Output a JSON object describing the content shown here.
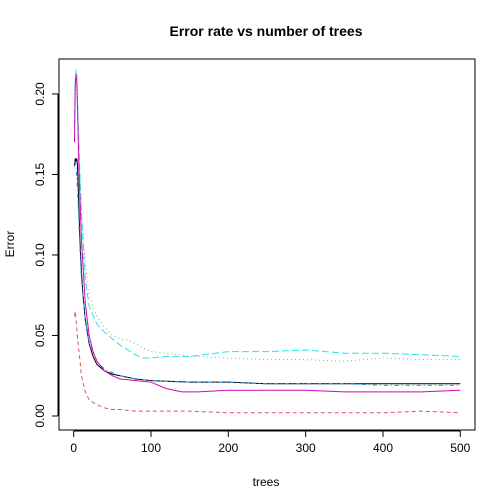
{
  "chart_data": {
    "type": "line",
    "title": "Error rate vs number of trees",
    "xlabel": "trees",
    "ylabel": "Error",
    "xlim": [
      -19,
      519
    ],
    "ylim": [
      -0.0087,
      0.2217
    ],
    "x_ticks": [
      0,
      100,
      200,
      300,
      400,
      500
    ],
    "y_ticks": [
      0.0,
      0.05,
      0.1,
      0.15,
      0.2
    ],
    "y_tick_labels": [
      "0.00",
      "0.05",
      "0.10",
      "0.15",
      "0.20"
    ],
    "grid": false,
    "series": [
      {
        "color": "#000000",
        "dash": "solid",
        "x": [
          1,
          2,
          3,
          4,
          5,
          6,
          8,
          10,
          12,
          15,
          20,
          25,
          30,
          40,
          50,
          60,
          80,
          100,
          150,
          200,
          250,
          300,
          350,
          400,
          450,
          500
        ],
        "y": [
          0.155,
          0.16,
          0.158,
          0.16,
          0.155,
          0.14,
          0.11,
          0.09,
          0.075,
          0.06,
          0.045,
          0.037,
          0.032,
          0.028,
          0.026,
          0.025,
          0.023,
          0.022,
          0.021,
          0.021,
          0.02,
          0.02,
          0.02,
          0.02,
          0.02,
          0.02
        ]
      },
      {
        "color": "#DF536B",
        "dash": "dashed",
        "x": [
          1,
          2,
          3,
          5,
          8,
          10,
          15,
          20,
          30,
          40,
          50,
          60,
          80,
          100,
          150,
          200,
          250,
          300,
          350,
          400,
          450,
          500
        ],
        "y": [
          0.062,
          0.065,
          0.06,
          0.048,
          0.035,
          0.025,
          0.015,
          0.01,
          0.007,
          0.005,
          0.004,
          0.004,
          0.003,
          0.003,
          0.003,
          0.002,
          0.002,
          0.002,
          0.002,
          0.002,
          0.003,
          0.002
        ]
      },
      {
        "color": "#61D04F",
        "dash": "dotted",
        "x": [
          1,
          2,
          3,
          4,
          5,
          7,
          10,
          15,
          20,
          25,
          30,
          40,
          50,
          60,
          70,
          80,
          90,
          100,
          120,
          150,
          200,
          250,
          300,
          350,
          400,
          450,
          500
        ],
        "y": [
          0.175,
          0.2,
          0.21,
          0.205,
          0.19,
          0.16,
          0.13,
          0.095,
          0.075,
          0.068,
          0.062,
          0.055,
          0.05,
          0.048,
          0.047,
          0.045,
          0.042,
          0.04,
          0.039,
          0.037,
          0.036,
          0.035,
          0.035,
          0.034,
          0.036,
          0.035,
          0.035
        ]
      },
      {
        "color": "#2297E6",
        "dash": "dotdash",
        "x": [
          1,
          2,
          3,
          5,
          8,
          10,
          15,
          20,
          30,
          40,
          50,
          60,
          80,
          100,
          150,
          200,
          250,
          300,
          350,
          400,
          450,
          500
        ],
        "y": [
          0.155,
          0.158,
          0.155,
          0.14,
          0.105,
          0.085,
          0.06,
          0.045,
          0.034,
          0.029,
          0.027,
          0.025,
          0.023,
          0.022,
          0.021,
          0.021,
          0.02,
          0.02,
          0.02,
          0.019,
          0.019,
          0.019
        ]
      },
      {
        "color": "#28E2E5",
        "dash": "longdash",
        "x": [
          1,
          2,
          3,
          4,
          5,
          7,
          10,
          15,
          20,
          30,
          40,
          50,
          60,
          70,
          80,
          90,
          100,
          120,
          150,
          200,
          250,
          300,
          350,
          400,
          450,
          500
        ],
        "y": [
          0.18,
          0.21,
          0.215,
          0.212,
          0.195,
          0.165,
          0.125,
          0.085,
          0.068,
          0.057,
          0.052,
          0.048,
          0.044,
          0.041,
          0.038,
          0.036,
          0.036,
          0.037,
          0.037,
          0.04,
          0.04,
          0.041,
          0.039,
          0.039,
          0.038,
          0.037
        ]
      },
      {
        "color": "#CD0BBC",
        "dash": "solid",
        "x": [
          1,
          2,
          3,
          4,
          5,
          7,
          10,
          15,
          20,
          25,
          30,
          40,
          50,
          60,
          80,
          100,
          120,
          140,
          160,
          200,
          250,
          300,
          350,
          400,
          450,
          500
        ],
        "y": [
          0.17,
          0.205,
          0.212,
          0.208,
          0.19,
          0.15,
          0.11,
          0.07,
          0.05,
          0.04,
          0.034,
          0.028,
          0.025,
          0.023,
          0.022,
          0.021,
          0.017,
          0.015,
          0.015,
          0.016,
          0.016,
          0.016,
          0.015,
          0.015,
          0.015,
          0.016
        ]
      }
    ]
  }
}
